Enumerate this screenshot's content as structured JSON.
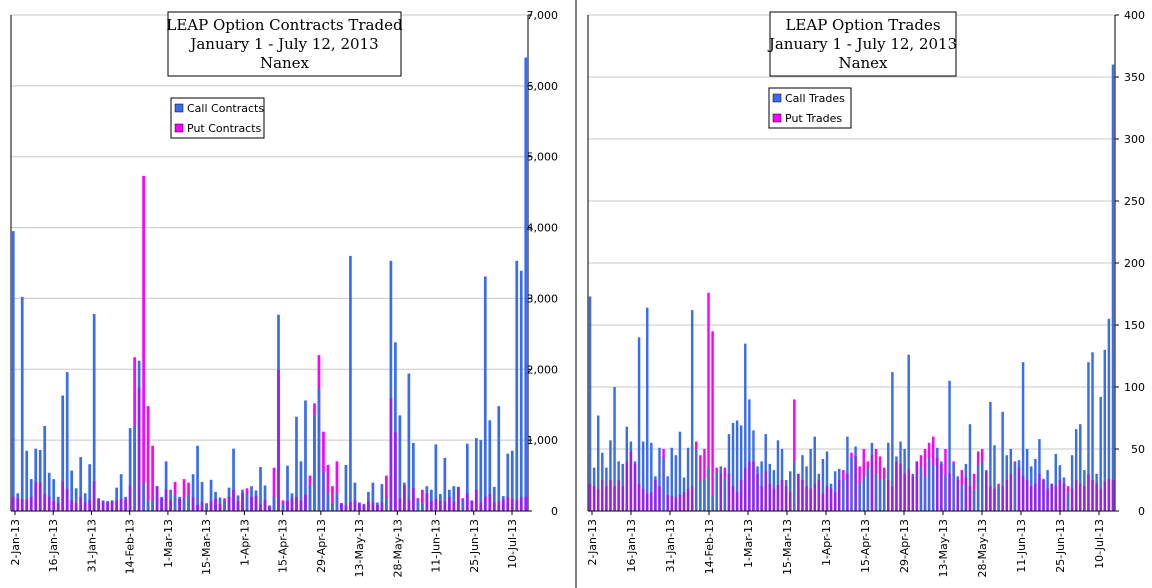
{
  "chart_data": [
    {
      "type": "bar",
      "title": [
        "LEAP Option Contracts Traded",
        "January 1 - July 12, 2013",
        "Nanex"
      ],
      "ylim": [
        0,
        7000
      ],
      "yticks": [
        "0",
        "1,000",
        "2,000",
        "3,000",
        "4,000",
        "5,000",
        "6,000",
        "7,000"
      ],
      "xticks": [
        "2-Jan-13",
        "16-Jan-13",
        "31-Jan-13",
        "14-Feb-13",
        "1-Mar-13",
        "15-Mar-13",
        "1-Apr-13",
        "15-Apr-13",
        "29-Apr-13",
        "13-May-13",
        "28-May-13",
        "11-Jun-13",
        "25-Jun-13",
        "10-Jul-13"
      ],
      "grid": true,
      "legend_position": "upper-left",
      "series": [
        {
          "name": "Call Contracts",
          "color": "#3a6cf0",
          "values": [
            3950,
            250,
            3020,
            850,
            450,
            880,
            860,
            1200,
            540,
            450,
            200,
            1630,
            1960,
            570,
            320,
            760,
            250,
            660,
            2780,
            180,
            150,
            140,
            150,
            330,
            520,
            200,
            1170,
            1200,
            2120,
            400,
            150,
            150,
            350,
            200,
            700,
            300,
            230,
            200,
            180,
            220,
            520,
            920,
            410,
            100,
            440,
            270,
            190,
            150,
            330,
            880,
            220,
            300,
            250,
            350,
            290,
            620,
            360,
            80,
            200,
            2770,
            100,
            640,
            250,
            1330,
            700,
            1560,
            350,
            1350,
            1730,
            550,
            250,
            100,
            250,
            110,
            650,
            3600,
            400,
            120,
            100,
            270,
            400,
            120,
            380,
            180,
            3530,
            2380,
            1350,
            400,
            1940,
            960,
            150,
            100,
            350,
            300,
            940,
            240,
            750,
            300,
            350,
            340,
            150,
            950,
            150,
            1030,
            1000,
            3310,
            1280,
            340,
            1480,
            210,
            810,
            850,
            3530,
            3390,
            6400
          ]
        },
        {
          "name": "Put Contracts",
          "color": "#ff00ff",
          "values": [
            200,
            180,
            170,
            160,
            200,
            410,
            400,
            240,
            200,
            140,
            110,
            420,
            310,
            150,
            110,
            200,
            120,
            150,
            420,
            170,
            130,
            120,
            140,
            150,
            170,
            160,
            360,
            2170,
            1740,
            4730,
            1480,
            920,
            350,
            180,
            300,
            150,
            410,
            170,
            450,
            400,
            200,
            90,
            130,
            110,
            140,
            170,
            100,
            180,
            200,
            300,
            140,
            250,
            320,
            200,
            210,
            90,
            150,
            60,
            610,
            1990,
            150,
            140,
            180,
            200,
            150,
            230,
            500,
            1520,
            2200,
            1120,
            650,
            350,
            700,
            110,
            80,
            130,
            150,
            110,
            80,
            140,
            120,
            80,
            120,
            500,
            1590,
            1110,
            180,
            360,
            160,
            320,
            180,
            300,
            250,
            140,
            170,
            140,
            130,
            200,
            130,
            340,
            180,
            250,
            140,
            300,
            120,
            200,
            240,
            120,
            140,
            160,
            200,
            170,
            150,
            190,
            200,
            210,
            340
          ]
        }
      ]
    },
    {
      "type": "bar",
      "title": [
        "LEAP Option Trades",
        "January 1 - July 12, 2013",
        "Nanex"
      ],
      "ylim": [
        0,
        400
      ],
      "yticks": [
        "0",
        "50",
        "100",
        "150",
        "200",
        "250",
        "300",
        "350",
        "400"
      ],
      "xticks": [
        "2-Jan-13",
        "16-Jan-13",
        "31-Jan-13",
        "14-Feb-13",
        "1-Mar-13",
        "15-Mar-13",
        "1-Apr-13",
        "15-Apr-13",
        "29-Apr-13",
        "13-May-13",
        "28-May-13",
        "11-Jun-13",
        "25-Jun-13",
        "10-Jul-13"
      ],
      "grid": true,
      "legend_position": "upper-left",
      "series": [
        {
          "name": "Call Trades",
          "color": "#3a6cf0",
          "values": [
            173,
            35,
            77,
            47,
            35,
            57,
            100,
            40,
            38,
            68,
            56,
            40,
            140,
            56,
            164,
            55,
            28,
            51,
            43,
            28,
            51,
            45,
            64,
            27,
            51,
            162,
            50,
            24,
            26,
            35,
            12,
            31,
            36,
            27,
            62,
            71,
            73,
            69,
            135,
            90,
            65,
            36,
            40,
            62,
            38,
            33,
            57,
            50,
            25,
            32,
            40,
            30,
            45,
            36,
            50,
            60,
            30,
            42,
            48,
            22,
            32,
            34,
            25,
            60,
            43,
            52,
            22,
            28,
            35,
            55,
            30,
            25,
            26,
            55,
            112,
            44,
            56,
            50,
            126,
            30,
            40,
            36,
            28,
            43,
            37,
            51,
            40,
            29,
            105,
            38,
            28,
            21,
            38,
            70,
            17,
            37,
            40,
            33,
            88,
            53,
            20,
            80,
            45,
            50,
            39,
            41,
            120,
            50,
            36,
            42,
            58,
            26,
            33,
            22,
            46,
            37,
            27,
            15,
            45,
            66,
            70,
            33,
            120,
            128,
            30,
            92,
            130,
            155,
            360
          ]
        },
        {
          "name": "Put Trades",
          "color": "#ff00ff",
          "values": [
            22,
            20,
            18,
            25,
            20,
            25,
            20,
            25,
            20,
            40,
            48,
            38,
            22,
            18,
            14,
            15,
            25,
            20,
            50,
            13,
            12,
            11,
            13,
            15,
            18,
            20,
            56,
            45,
            50,
            176,
            145,
            35,
            30,
            35,
            30,
            20,
            15,
            25,
            35,
            40,
            40,
            30,
            20,
            32,
            22,
            18,
            21,
            25,
            20,
            15,
            90,
            30,
            25,
            20,
            18,
            22,
            25,
            14,
            20,
            18,
            15,
            25,
            33,
            30,
            47,
            44,
            36,
            50,
            40,
            45,
            50,
            44,
            35,
            25,
            20,
            40,
            38,
            30,
            34,
            28,
            40,
            45,
            50,
            55,
            60,
            43,
            38,
            50,
            30,
            40,
            25,
            33,
            27,
            20,
            30,
            48,
            50,
            32,
            20,
            18,
            22,
            20,
            25,
            30,
            40,
            35,
            28,
            25,
            20,
            22,
            30,
            25,
            18,
            22,
            20,
            25,
            22,
            20,
            18,
            25,
            22,
            20,
            30,
            25,
            22,
            18,
            24,
            26,
            25
          ]
        }
      ]
    }
  ]
}
